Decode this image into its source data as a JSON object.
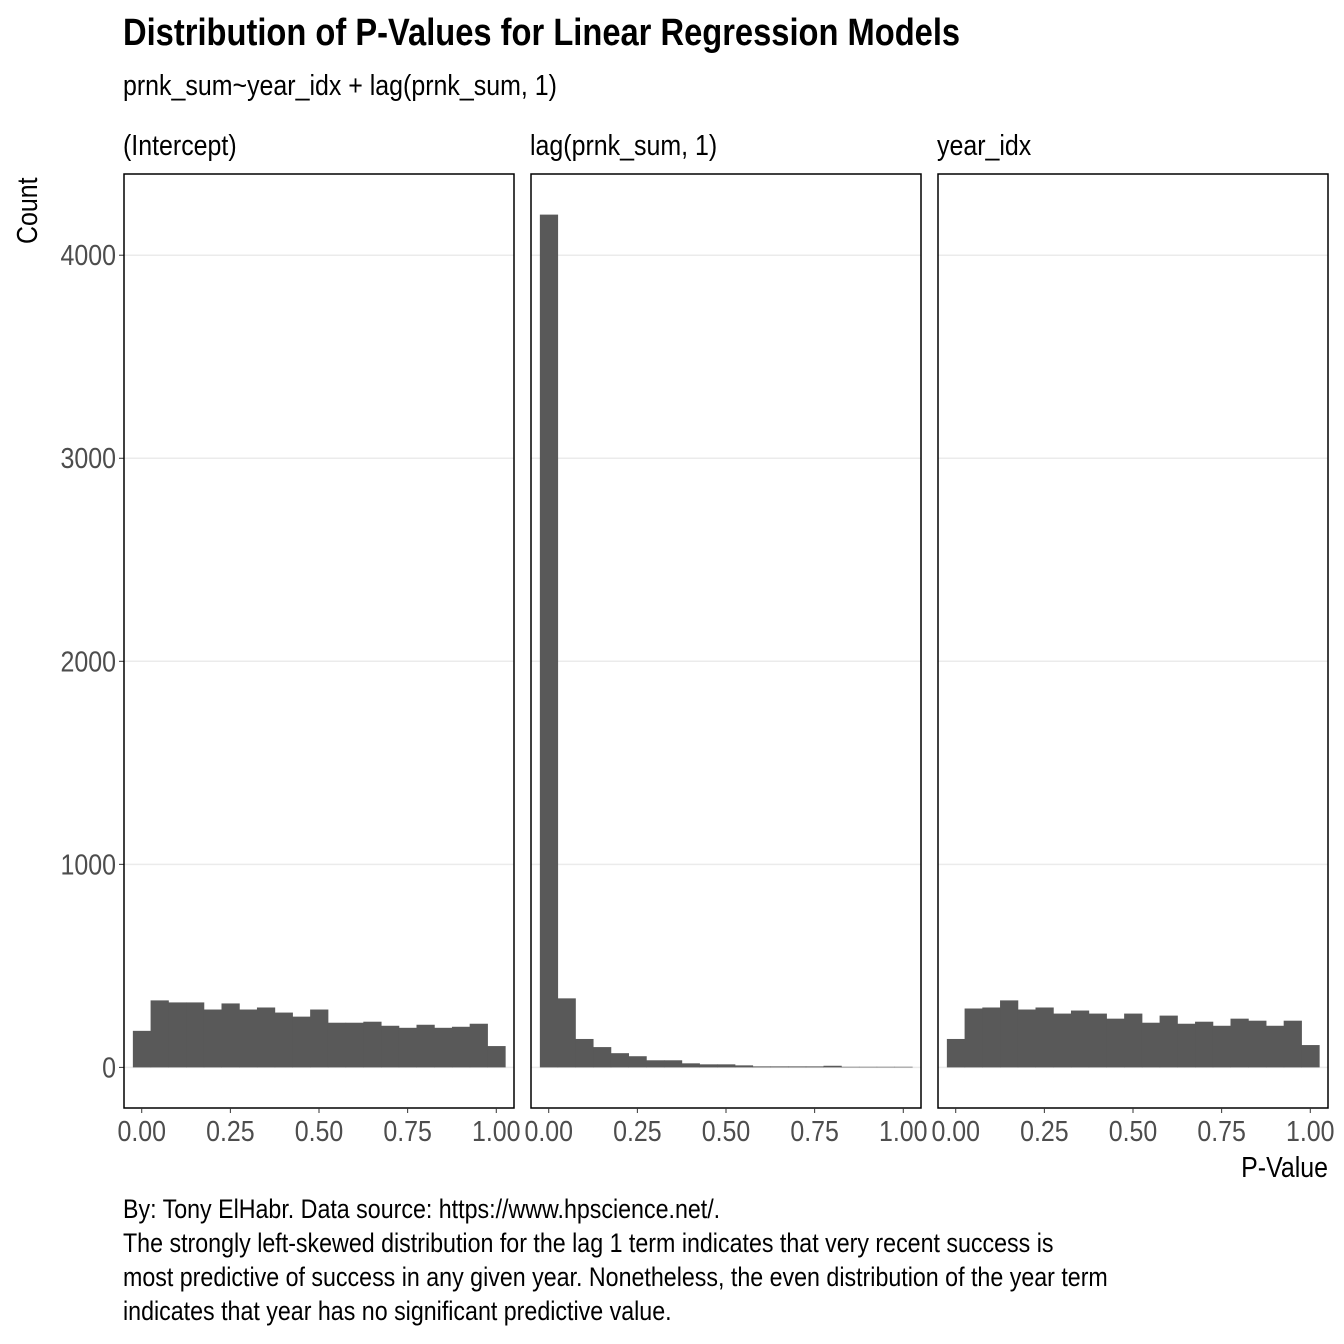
{
  "chart_data": {
    "type": "bar",
    "title": "Distribution of P-Values for Linear Regression Models",
    "subtitle": "prnk_sum~year_idx + lag(prnk_sum, 1)",
    "xlabel": "P-Value",
    "ylabel": "Count",
    "xlim": [
      -0.05,
      1.05
    ],
    "ylim": [
      -200,
      4400
    ],
    "x_ticks": [
      0,
      0.25,
      0.5,
      0.75,
      1
    ],
    "x_tick_labels": [
      "0.00",
      "0.25",
      "0.50",
      "0.75",
      "1.00"
    ],
    "y_ticks": [
      0,
      1000,
      2000,
      3000,
      4000
    ],
    "y_tick_labels": [
      "0",
      "1000",
      "2000",
      "3000",
      "4000"
    ],
    "grid": "horizontal",
    "bar_color": "#595959",
    "bin_width": 0.05,
    "bin_centers": [
      0,
      0.05,
      0.1,
      0.15,
      0.2,
      0.25,
      0.3,
      0.35,
      0.4,
      0.45,
      0.5,
      0.55,
      0.6,
      0.65,
      0.7,
      0.75,
      0.8,
      0.85,
      0.9,
      0.95,
      1
    ],
    "series": [
      {
        "name": "(Intercept)",
        "values": [
          180,
          330,
          320,
          320,
          285,
          315,
          285,
          295,
          270,
          250,
          285,
          220,
          220,
          225,
          205,
          195,
          210,
          195,
          200,
          215,
          105
        ]
      },
      {
        "name": "lag(prnk_sum, 1)",
        "values": [
          4200,
          340,
          140,
          100,
          70,
          55,
          35,
          35,
          20,
          15,
          15,
          10,
          5,
          5,
          5,
          5,
          8,
          3,
          3,
          3,
          3
        ]
      },
      {
        "name": "year_idx",
        "values": [
          140,
          290,
          295,
          330,
          285,
          295,
          265,
          280,
          265,
          240,
          265,
          220,
          255,
          215,
          225,
          205,
          240,
          230,
          205,
          230,
          110
        ]
      }
    ]
  },
  "caption": [
    "By: Tony ElHabr. Data source: https://www.hpscience.net/.",
    "The strongly left-skewed distribution for the lag 1 term indicates that very recent success is",
    "most predictive of success in any given year. Nonetheless, the even distribution of the year term",
    "indicates that year has no significant predictive value."
  ]
}
